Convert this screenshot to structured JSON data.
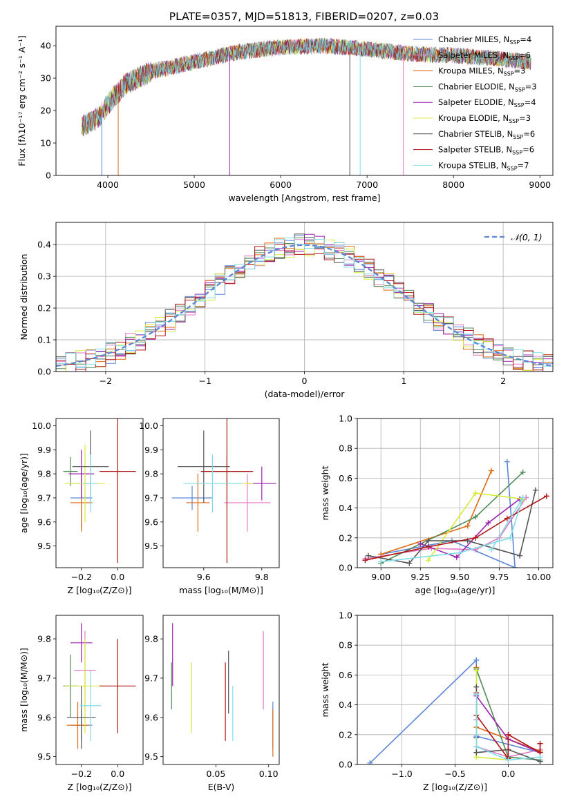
{
  "figure": {
    "title": "PLATE=0357, MJD=51813, FIBERID=0207, z=0.03"
  },
  "series": [
    {
      "key": "cm",
      "label": "Chabrier MILES, N",
      "sub": "SSP",
      "suffix": "=4",
      "color": "#5b86d6"
    },
    {
      "key": "sm",
      "label": "Salpeter MILES, N",
      "sub": "SSP",
      "suffix": "=6",
      "color": "#e377c2"
    },
    {
      "key": "km",
      "label": "Kroupa MILES, N",
      "sub": "SSP",
      "suffix": "=3",
      "color": "#dd6a12"
    },
    {
      "key": "ce",
      "label": "Chabrier ELODIE, N",
      "sub": "SSP",
      "suffix": "=3",
      "color": "#4f8a57"
    },
    {
      "key": "se",
      "label": "Salpeter ELODIE, N",
      "sub": "SSP",
      "suffix": "=4",
      "color": "#9c1fb0"
    },
    {
      "key": "ke",
      "label": "Kroupa ELODIE, N",
      "sub": "SSP",
      "suffix": "=3",
      "color": "#d8ea38"
    },
    {
      "key": "cs",
      "label": "Chabrier STELIB, N",
      "sub": "SSP",
      "suffix": "=6",
      "color": "#555555"
    },
    {
      "key": "ss",
      "label": "Salpeter STELIB, N",
      "sub": "SSP",
      "suffix": "=6",
      "color": "#b01414"
    },
    {
      "key": "ks",
      "label": "Kroupa STELIB, N",
      "sub": "SSP",
      "suffix": "=7",
      "color": "#7fdde8"
    }
  ],
  "chart_data": [
    {
      "id": "spectrum",
      "type": "line",
      "xlabel": "wavelength [Angstrom, rest frame]",
      "ylabel": "Flux [fλ10⁻¹⁷ erg cm⁻² s⁻¹ A⁻¹]",
      "xlim": [
        3400,
        9150
      ],
      "ylim": [
        0,
        46
      ],
      "xticks": [
        4000,
        5000,
        6000,
        7000,
        8000,
        9000
      ],
      "yticks": [
        0,
        10,
        20,
        30,
        40
      ],
      "x_range_data": [
        3700,
        8900
      ],
      "continuum_shape": {
        "x": [
          3700,
          3900,
          4000,
          4200,
          4500,
          5000,
          5500,
          6000,
          6500,
          7000,
          7500,
          8000,
          8500,
          8900
        ],
        "y": [
          15,
          18,
          22,
          28,
          32,
          35,
          38,
          39.5,
          40,
          39,
          37.5,
          37,
          36,
          35
        ]
      },
      "dips_to_zero": [
        3930,
        4120,
        5410,
        6800,
        6920,
        7420
      ],
      "legend": "top-right",
      "grid": false
    },
    {
      "id": "residuals",
      "type": "histogram",
      "xlabel": "(data-model)/error",
      "ylabel": "Normed distribution",
      "xlim": [
        -2.5,
        2.5
      ],
      "ylim": [
        0,
        0.47
      ],
      "xticks": [
        -2,
        -1,
        0,
        1,
        2
      ],
      "yticks": [
        0.0,
        0.1,
        0.2,
        0.3,
        0.4
      ],
      "bins": 50,
      "reference": {
        "label": "𝒩(0, 1)",
        "color": "#5b86d6",
        "mean": 0,
        "sigma": 1
      },
      "legend": "top-right",
      "grid": true
    },
    {
      "id": "age_vs_Z",
      "type": "errorbar",
      "xlabel": "Z [log₁₀(Z/Z⊙)]",
      "ylabel": "age  [log₁₀(age/yr)]",
      "xlim": [
        -0.34,
        0.14
      ],
      "ylim": [
        9.41,
        10.03
      ],
      "xticks": [
        -0.2,
        0.0
      ],
      "xticklabels": [
        "−0.2",
        "0.0"
      ],
      "yticks": [
        9.5,
        9.6,
        9.7,
        9.8,
        9.9,
        10.0
      ],
      "points": [
        {
          "s": 0,
          "x": -0.2,
          "y": 9.7,
          "xerr": 0.06,
          "yerr": 0.13
        },
        {
          "s": 1,
          "x": -0.2,
          "y": 9.76,
          "xerr": 0.06,
          "yerr": 0.07
        },
        {
          "s": 2,
          "x": -0.2,
          "y": 9.68,
          "xerr": 0.06,
          "yerr": 0.12
        },
        {
          "s": 3,
          "x": -0.26,
          "y": 9.81,
          "xerr": 0.04,
          "yerr": 0.06
        },
        {
          "s": 4,
          "x": -0.2,
          "y": 9.8,
          "xerr": 0.07,
          "yerr": 0.1
        },
        {
          "s": 5,
          "x": -0.18,
          "y": 9.76,
          "xerr": 0.11,
          "yerr": 0.16
        },
        {
          "s": 6,
          "x": -0.15,
          "y": 9.83,
          "xerr": 0.1,
          "yerr": 0.15
        },
        {
          "s": 7,
          "x": 0.0,
          "y": 9.81,
          "xerr": 0.1,
          "yerr": 0.38
        },
        {
          "s": 8,
          "x": -0.15,
          "y": 9.76,
          "xerr": 0.04,
          "yerr": 0.12
        }
      ],
      "grid": false
    },
    {
      "id": "age_vs_mass",
      "type": "errorbar",
      "xlabel": "mass [log₁₀(M/M⊙)]",
      "ylabel": "",
      "xlim": [
        9.46,
        9.86
      ],
      "ylim": [
        9.41,
        10.03
      ],
      "xticks": [
        9.6,
        9.8
      ],
      "yticks": [
        9.5,
        9.6,
        9.7,
        9.8,
        9.9,
        10.0
      ],
      "points": [
        {
          "s": 0,
          "x": 9.56,
          "y": 9.7,
          "xerr": 0.07,
          "yerr": 0.05
        },
        {
          "s": 1,
          "x": 9.75,
          "y": 9.68,
          "xerr": 0.08,
          "yerr": 0.12
        },
        {
          "s": 2,
          "x": 9.58,
          "y": 9.68,
          "xerr": 0.04,
          "yerr": 0.12
        },
        {
          "s": 3,
          "x": 9.68,
          "y": 9.81,
          "xerr": 0.08,
          "yerr": 0.06
        },
        {
          "s": 4,
          "x": 9.8,
          "y": 9.76,
          "xerr": 0.05,
          "yerr": 0.07
        },
        {
          "s": 5,
          "x": 9.68,
          "y": 9.76,
          "xerr": 0.09,
          "yerr": 0.1
        },
        {
          "s": 6,
          "x": 9.6,
          "y": 9.83,
          "xerr": 0.09,
          "yerr": 0.15
        },
        {
          "s": 7,
          "x": 9.68,
          "y": 9.81,
          "xerr": 0.09,
          "yerr": 0.38
        },
        {
          "s": 8,
          "x": 9.63,
          "y": 9.76,
          "xerr": 0.1,
          "yerr": 0.12
        }
      ],
      "grid": false
    },
    {
      "id": "weight_vs_age",
      "type": "line",
      "xlabel": "age  [log₁₀(age/yr)]",
      "ylabel": "mass weight",
      "xlim": [
        8.85,
        10.09
      ],
      "ylim": [
        0,
        1
      ],
      "xticks": [
        9.0,
        9.25,
        9.5,
        9.75,
        10.0
      ],
      "xticklabels": [
        "9.00",
        "9.25",
        "9.50",
        "9.75",
        "10.00"
      ],
      "yticks": [
        0.0,
        0.2,
        0.4,
        0.6,
        0.8,
        1.0
      ],
      "series": [
        {
          "s": 0,
          "x": [
            9.0,
            9.45,
            9.85,
            9.8
          ],
          "y": [
            0.09,
            0.18,
            0.0,
            0.71
          ]
        },
        {
          "s": 1,
          "x": [
            8.9,
            9.32,
            9.6,
            9.75,
            9.92
          ],
          "y": [
            0.06,
            0.13,
            0.12,
            0.2,
            0.47
          ]
        },
        {
          "s": 2,
          "x": [
            9.0,
            9.55,
            9.7
          ],
          "y": [
            0.09,
            0.28,
            0.65
          ]
        },
        {
          "s": 3,
          "x": [
            9.0,
            9.6,
            9.9
          ],
          "y": [
            0.03,
            0.34,
            0.64
          ]
        },
        {
          "s": 4,
          "x": [
            9.25,
            9.48,
            9.68,
            9.88
          ],
          "y": [
            0.16,
            0.07,
            0.3,
            0.46
          ]
        },
        {
          "s": 5,
          "x": [
            9.3,
            9.6,
            9.9
          ],
          "y": [
            0.05,
            0.5,
            0.46
          ]
        },
        {
          "s": 6,
          "x": [
            8.92,
            9.18,
            9.3,
            9.55,
            9.88,
            9.98
          ],
          "y": [
            0.08,
            0.03,
            0.18,
            0.18,
            0.08,
            0.52
          ]
        },
        {
          "s": 7,
          "x": [
            8.9,
            9.3,
            9.6,
            9.8,
            10.05
          ],
          "y": [
            0.05,
            0.14,
            0.2,
            0.33,
            0.48
          ]
        },
        {
          "s": 8,
          "x": [
            9.0,
            9.5,
            9.82,
            9.9,
            9.7
          ],
          "y": [
            0.04,
            0.1,
            0.2,
            0.47,
            0.12
          ]
        }
      ],
      "grid": true
    },
    {
      "id": "mass_vs_Z",
      "type": "errorbar",
      "xlabel": "Z [log₁₀(Z/Z⊙)]",
      "ylabel": "mass [log₁₀(M/M⊙)]",
      "xlim": [
        -0.34,
        0.14
      ],
      "ylim": [
        9.48,
        9.86
      ],
      "xticks": [
        -0.2,
        0.0
      ],
      "xticklabels": [
        "−0.2",
        "0.0"
      ],
      "yticks": [
        9.5,
        9.6,
        9.7,
        9.8
      ],
      "points": [
        {
          "s": 0,
          "x": -0.2,
          "y": 9.58,
          "xerr": 0.06,
          "yerr": 0.04
        },
        {
          "s": 1,
          "x": -0.18,
          "y": 9.72,
          "xerr": 0.06,
          "yerr": 0.1
        },
        {
          "s": 2,
          "x": -0.22,
          "y": 9.58,
          "xerr": 0.06,
          "yerr": 0.06
        },
        {
          "s": 3,
          "x": -0.26,
          "y": 9.68,
          "xerr": 0.04,
          "yerr": 0.08
        },
        {
          "s": 4,
          "x": -0.2,
          "y": 9.79,
          "xerr": 0.06,
          "yerr": 0.05
        },
        {
          "s": 5,
          "x": -0.18,
          "y": 9.68,
          "xerr": 0.11,
          "yerr": 0.12
        },
        {
          "s": 6,
          "x": -0.2,
          "y": 9.6,
          "xerr": 0.08,
          "yerr": 0.08
        },
        {
          "s": 7,
          "x": 0.0,
          "y": 9.68,
          "xerr": 0.1,
          "yerr": 0.12
        },
        {
          "s": 8,
          "x": -0.15,
          "y": 9.63,
          "xerr": 0.06,
          "yerr": 0.09
        }
      ],
      "grid": false
    },
    {
      "id": "mass_vs_ebv",
      "type": "errorbar",
      "xlabel": "E(B-V)",
      "ylabel": "",
      "xlim": [
        0.0,
        0.11
      ],
      "ylim": [
        9.48,
        9.86
      ],
      "xticks": [
        0.05,
        0.1
      ],
      "xticklabels": [
        "0.05",
        "0.10"
      ],
      "yticks": [
        9.5,
        9.6,
        9.7,
        9.8
      ],
      "points": [
        {
          "s": 0,
          "x": 0.104,
          "y": 9.58,
          "xerr": 0,
          "yerr": 0.06
        },
        {
          "s": 1,
          "x": 0.095,
          "y": 9.72,
          "xerr": 0,
          "yerr": 0.1
        },
        {
          "s": 2,
          "x": 0.104,
          "y": 9.56,
          "xerr": 0,
          "yerr": 0.06
        },
        {
          "s": 3,
          "x": 0.008,
          "y": 9.68,
          "xerr": 0,
          "yerr": 0.06
        },
        {
          "s": 4,
          "x": 0.009,
          "y": 9.76,
          "xerr": 0,
          "yerr": 0.08
        },
        {
          "s": 5,
          "x": 0.027,
          "y": 9.65,
          "xerr": 0,
          "yerr": 0.09
        },
        {
          "s": 6,
          "x": 0.062,
          "y": 9.69,
          "xerr": 0,
          "yerr": 0.08
        },
        {
          "s": 7,
          "x": 0.059,
          "y": 9.64,
          "xerr": 0,
          "yerr": 0.1
        },
        {
          "s": 8,
          "x": 0.066,
          "y": 9.61,
          "xerr": 0,
          "yerr": 0.07
        }
      ],
      "grid": false
    },
    {
      "id": "weight_vs_Z",
      "type": "line",
      "xlabel": "Z [log₁₀(Z/Z⊙)]",
      "ylabel": "mass weight",
      "xlim": [
        -1.42,
        0.42
      ],
      "ylim": [
        0,
        1
      ],
      "xticks": [
        -1.0,
        -0.5,
        0.0
      ],
      "xticklabels": [
        "−1.0",
        "−0.5",
        "0.0"
      ],
      "yticks": [
        0.0,
        0.2,
        0.4,
        0.6,
        0.8,
        1.0
      ],
      "series": [
        {
          "s": 0,
          "x": [
            -1.3,
            -0.3,
            -0.3,
            0.3
          ],
          "y": [
            0.01,
            0.7,
            0.19,
            0.08
          ]
        },
        {
          "s": 1,
          "x": [
            -0.3,
            -0.3,
            0.0,
            0.3
          ],
          "y": [
            0.3,
            0.12,
            0.05,
            0.1
          ]
        },
        {
          "s": 2,
          "x": [
            -0.3,
            -0.3,
            0.3
          ],
          "y": [
            0.65,
            0.25,
            0.09
          ]
        },
        {
          "s": 3,
          "x": [
            -0.3,
            0.0,
            0.3
          ],
          "y": [
            0.64,
            0.05,
            0.03
          ]
        },
        {
          "s": 4,
          "x": [
            -0.3,
            0.0,
            0.3
          ],
          "y": [
            0.46,
            0.17,
            0.08
          ]
        },
        {
          "s": 5,
          "x": [
            -0.3,
            -0.3,
            0.0
          ],
          "y": [
            0.63,
            0.05,
            0.03
          ]
        },
        {
          "s": 6,
          "x": [
            -0.3,
            -0.3,
            -0.3,
            0.0,
            0.3
          ],
          "y": [
            0.52,
            0.18,
            0.08,
            0.1,
            0.02
          ]
        },
        {
          "s": 7,
          "x": [
            -0.3,
            -0.3,
            0.0,
            0.0,
            0.3,
            0.3
          ],
          "y": [
            0.48,
            0.33,
            0.04,
            0.2,
            0.08,
            0.14
          ]
        },
        {
          "s": 8,
          "x": [
            -0.3,
            -0.3,
            0.0,
            0.3
          ],
          "y": [
            0.47,
            0.12,
            0.03,
            0.05
          ]
        }
      ],
      "grid": true
    }
  ]
}
